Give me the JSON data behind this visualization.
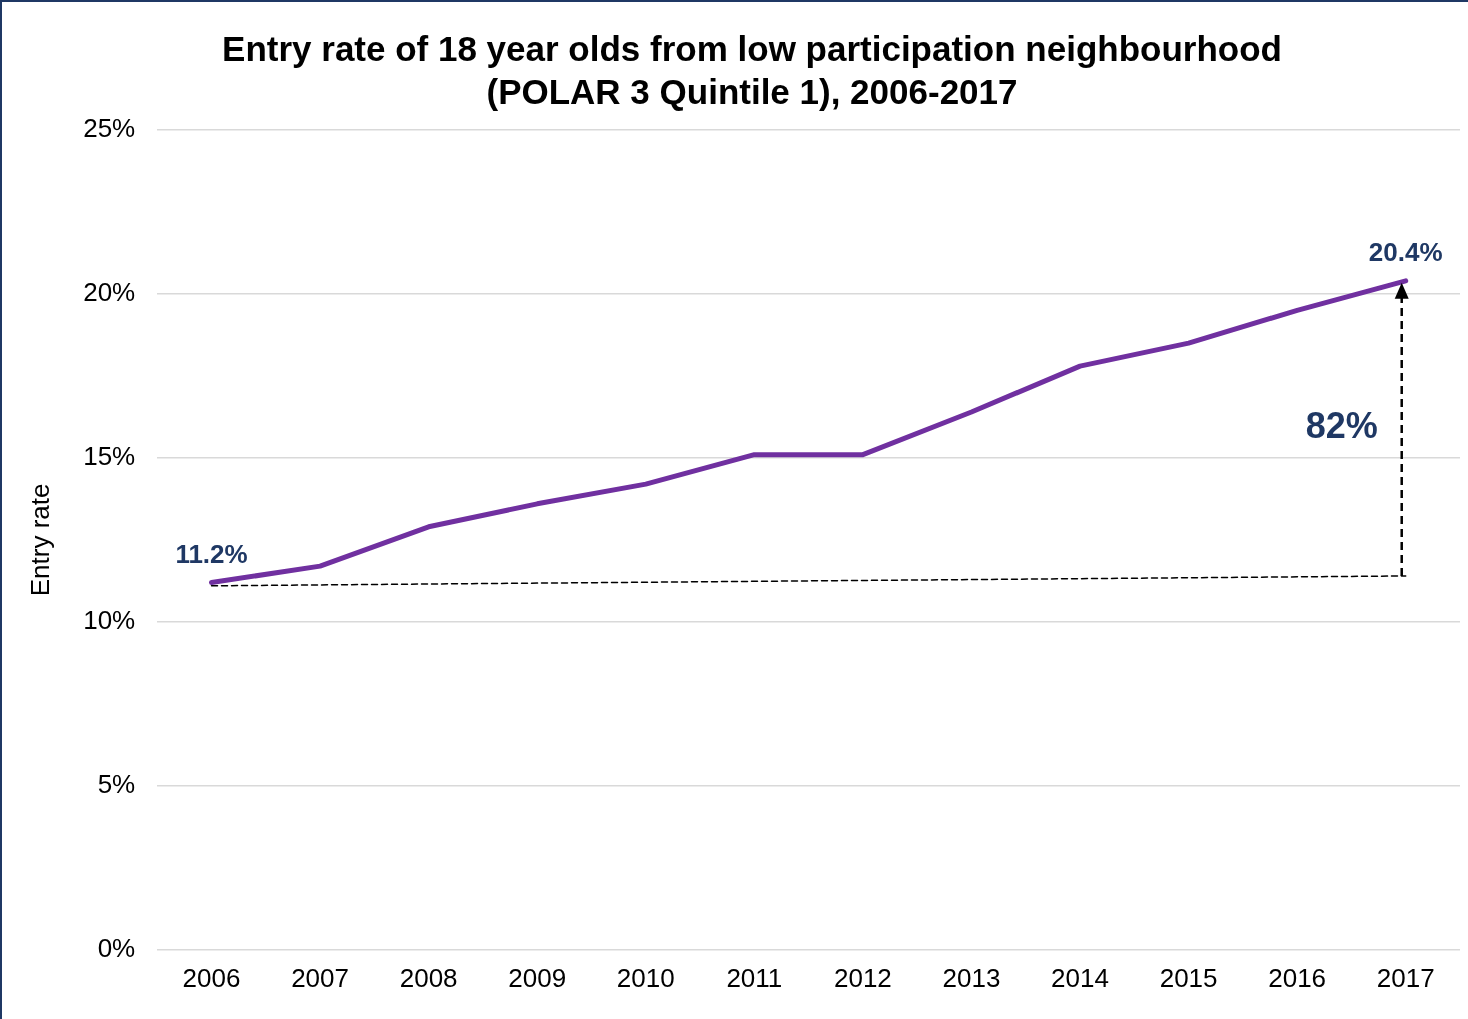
{
  "chart_data": {
    "type": "line",
    "title": "Entry rate of 18 year olds from low participation neighbourhood (POLAR 3 Quintile 1), 2006-2017",
    "ylabel": "Entry rate",
    "categories": [
      "2006",
      "2007",
      "2008",
      "2009",
      "2010",
      "2011",
      "2012",
      "2013",
      "2014",
      "2015",
      "2016",
      "2017"
    ],
    "series": [
      {
        "color": "#7030a0",
        "values": [
          11.2,
          11.7,
          12.9,
          13.6,
          14.2,
          15.1,
          15.1,
          16.4,
          17.8,
          18.5,
          19.5,
          20.4
        ],
        "value_labels": [
          "11.2%",
          null,
          null,
          null,
          null,
          null,
          null,
          null,
          null,
          null,
          null,
          "20.4%"
        ]
      },
      {
        "color": "#000000",
        "line_style": "dashed",
        "values": [
          11.1,
          null,
          null,
          null,
          null,
          null,
          null,
          null,
          null,
          null,
          null,
          11.4
        ]
      }
    ],
    "ylim": [
      0,
      25
    ],
    "yticks": [
      {
        "value": 0,
        "label": "0%"
      },
      {
        "value": 5,
        "label": "5%"
      },
      {
        "value": 10,
        "label": "10%"
      },
      {
        "value": 15,
        "label": "15%"
      },
      {
        "value": 20,
        "label": "20%"
      },
      {
        "value": 25,
        "label": "25%"
      }
    ],
    "grid": "y",
    "legend": false,
    "marker": "none",
    "annotations": [
      "82%"
    ]
  }
}
